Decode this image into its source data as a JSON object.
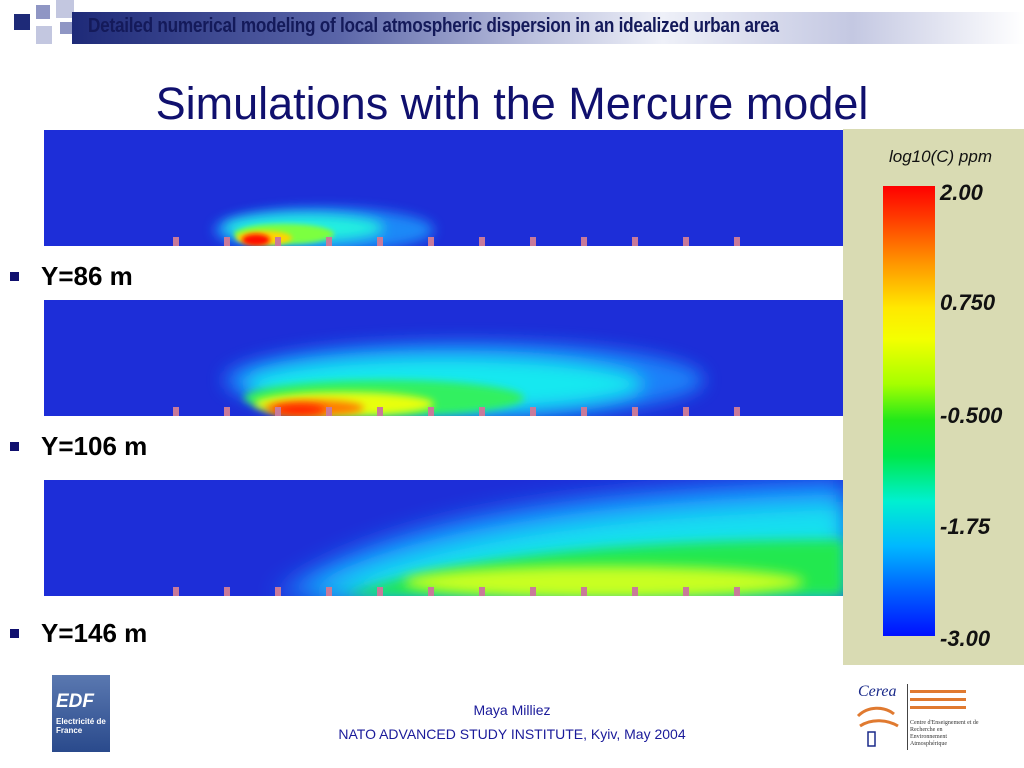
{
  "header": {
    "banner_title": "Detailed numerical modeling of local atmospheric dispersion in an idealized urban area"
  },
  "slide": {
    "title": "Simulations with the Mercure model"
  },
  "panels": [
    {
      "label": "Y=86 m"
    },
    {
      "label": "Y=106 m"
    },
    {
      "label": "Y=146 m"
    }
  ],
  "colorbar": {
    "title": "log10(C) ppm",
    "ticks": [
      "2.00",
      "0.750",
      "-0.500",
      "-1.75",
      "-3.00"
    ]
  },
  "footer": {
    "author": "Maya Milliez",
    "event": "NATO ADVANCED STUDY INSTITUTE, Kyiv, May 2004"
  },
  "logos": {
    "edf": {
      "name": "EDF",
      "subtitle": "Electricité de France"
    },
    "cerea": {
      "name": "Cerea",
      "description": "Centre d'Enseignement et de Recherche en Environnement Atmosphérique"
    }
  },
  "colors": {
    "title": "#10106e",
    "background_field": "#1d2ed8",
    "building": "#c87a9a"
  }
}
